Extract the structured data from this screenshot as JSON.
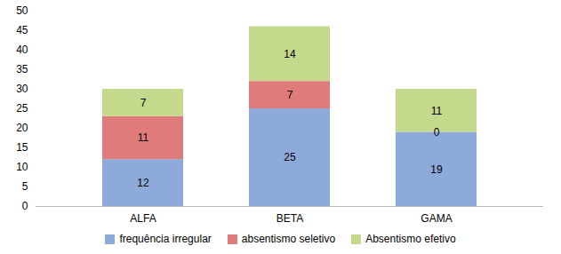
{
  "chart_data": {
    "type": "bar",
    "stacked": true,
    "categories": [
      "ALFA",
      "BETA",
      "GAMA"
    ],
    "series": [
      {
        "name": "frequência irregular",
        "color": "#8eaadb",
        "values": [
          12,
          25,
          19
        ]
      },
      {
        "name": "absentismo seletivo",
        "color": "#e07b7b",
        "values": [
          11,
          7,
          0
        ]
      },
      {
        "name": "Absentismo efetivo",
        "color": "#c5d98d",
        "values": [
          7,
          14,
          11
        ]
      }
    ],
    "ylim": [
      0,
      50
    ],
    "yticks": [
      0,
      5,
      10,
      15,
      20,
      25,
      30,
      35,
      40,
      45,
      50
    ],
    "grid": false,
    "data_labels": true,
    "legend": "bottom"
  }
}
